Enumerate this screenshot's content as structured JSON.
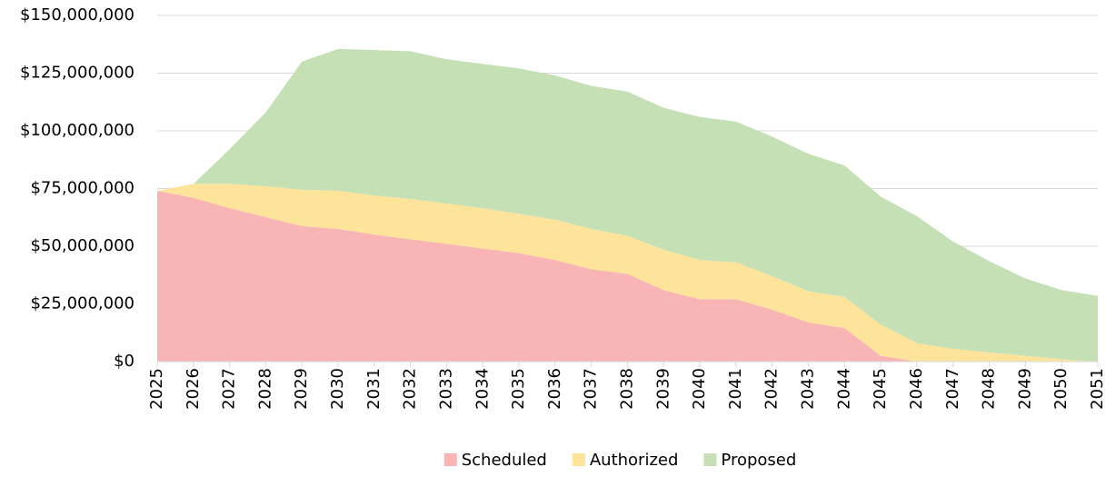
{
  "chart_data": {
    "type": "area",
    "stacked": true,
    "categories": [
      "2025",
      "2026",
      "2027",
      "2028",
      "2029",
      "2030",
      "2031",
      "2032",
      "2033",
      "2034",
      "2035",
      "2036",
      "2037",
      "2038",
      "2039",
      "2040",
      "2041",
      "2042",
      "2043",
      "2044",
      "2045",
      "2046",
      "2047",
      "2048",
      "2049",
      "2050",
      "2051"
    ],
    "series": [
      {
        "name": "Scheduled",
        "color": "#f9b4b5",
        "values": [
          74000000,
          71000000,
          66500000,
          62600000,
          58700000,
          57500000,
          55000000,
          53000000,
          51000000,
          49000000,
          47000000,
          44000000,
          40000000,
          38000000,
          31000000,
          27000000,
          27000000,
          22500000,
          17000000,
          14500000,
          2500000,
          0,
          0,
          0,
          0,
          0,
          0
        ]
      },
      {
        "name": "Authorized",
        "color": "#fde49a",
        "values": [
          0,
          6000000,
          10500000,
          13400000,
          15800000,
          16500000,
          17000000,
          17500000,
          17500000,
          17500000,
          17000000,
          17500000,
          17500000,
          16500000,
          17500000,
          17000000,
          16000000,
          14500000,
          13500000,
          13500000,
          13500000,
          8000000,
          5500000,
          4000000,
          2500000,
          1000000,
          0
        ]
      },
      {
        "name": "Proposed",
        "color": "#c5e0b4",
        "values": [
          0,
          0,
          15000000,
          32000000,
          55500000,
          61500000,
          63000000,
          64000000,
          62500000,
          62500000,
          63000000,
          62500000,
          62000000,
          62500000,
          61500000,
          62000000,
          61000000,
          60500000,
          59500000,
          57000000,
          55500000,
          55000000,
          46500000,
          39500000,
          33500000,
          30000000,
          28500000
        ]
      }
    ],
    "ylim": [
      0,
      150000000
    ],
    "yticks": [
      {
        "value": 0,
        "label": "$0"
      },
      {
        "value": 25000000,
        "label": "$25,000,000"
      },
      {
        "value": 50000000,
        "label": "$50,000,000"
      },
      {
        "value": 75000000,
        "label": "$75,000,000"
      },
      {
        "value": 100000000,
        "label": "$100,000,000"
      },
      {
        "value": 125000000,
        "label": "$125,000,000"
      },
      {
        "value": 150000000,
        "label": "$150,000,000"
      }
    ],
    "grid": true,
    "legend": "bottom"
  }
}
